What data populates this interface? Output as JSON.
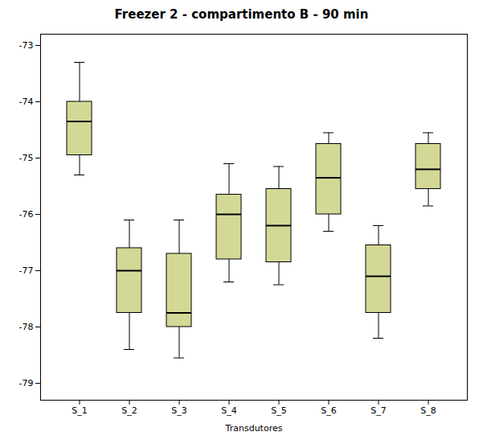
{
  "chart_data": {
    "type": "box",
    "title": "Freezer 2 - compartimento B - 90 min",
    "xlabel": "Transdutores",
    "categories": [
      "S_1",
      "S_2",
      "S_3",
      "S_4",
      "S_5",
      "S_6",
      "S_7",
      "S_8"
    ],
    "whisker_low": [
      -75.3,
      -78.4,
      -78.55,
      -77.2,
      -77.25,
      -76.3,
      -78.2,
      -75.85
    ],
    "q1": [
      -74.95,
      -77.75,
      -78.0,
      -76.8,
      -76.85,
      -76.0,
      -77.75,
      -75.55
    ],
    "median": [
      -74.35,
      -77.0,
      -77.75,
      -76.0,
      -76.2,
      -75.35,
      -77.1,
      -75.2
    ],
    "q3": [
      -74.0,
      -76.6,
      -76.7,
      -75.65,
      -75.55,
      -74.75,
      -76.55,
      -74.75
    ],
    "whisker_high": [
      -73.3,
      -76.1,
      -76.1,
      -75.1,
      -75.15,
      -74.55,
      -76.2,
      -74.55
    ],
    "color": "#d4d896",
    "ylim": [
      -79.3,
      -72.8
    ],
    "yticks": [
      -79,
      -78,
      -77,
      -76,
      -75,
      -74,
      -73
    ],
    "grid": false
  }
}
